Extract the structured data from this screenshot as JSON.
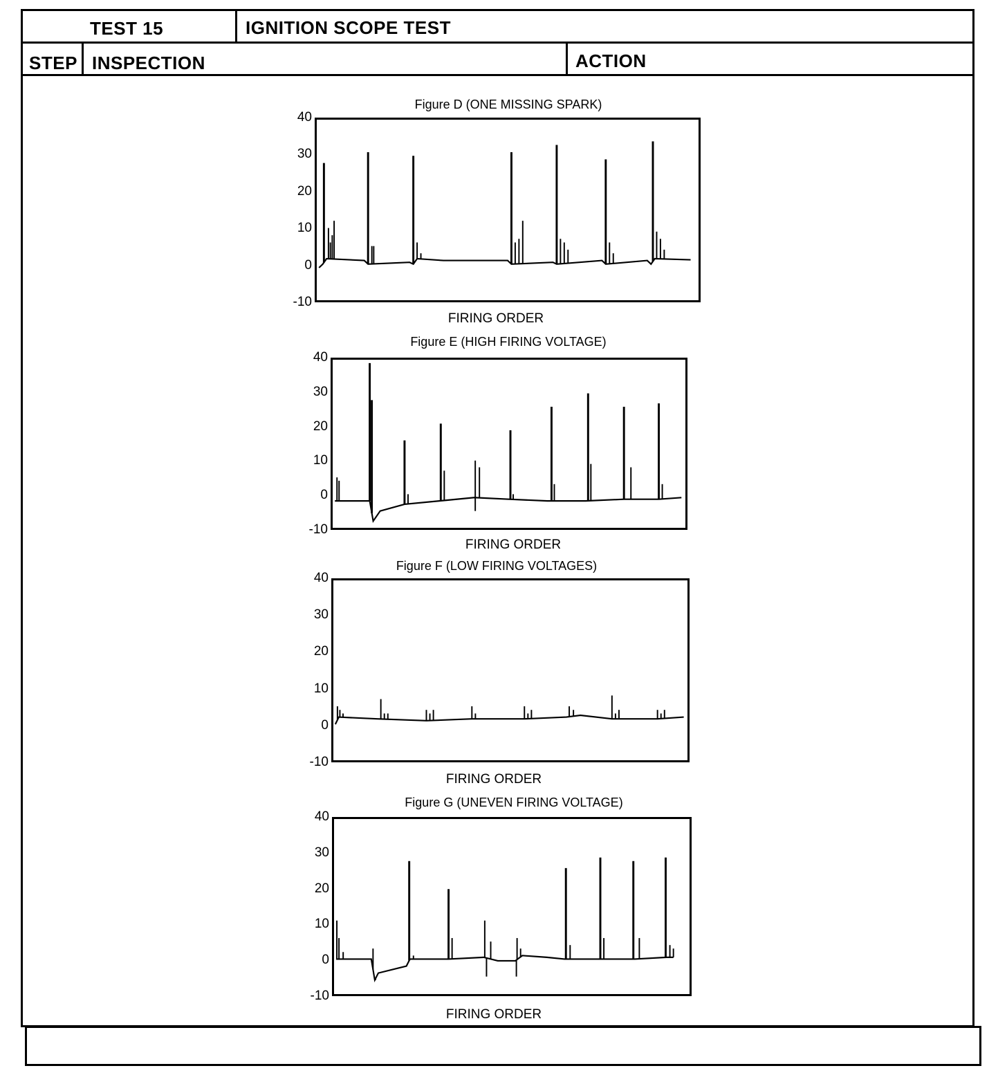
{
  "header": {
    "test_label": "TEST 15",
    "test_title": "IGNITION SCOPE TEST",
    "step_label": "STEP",
    "inspection_label": "INSPECTION",
    "action_label": "ACTION"
  },
  "chart_data": [
    {
      "type": "line",
      "title": "Figure D (ONE MISSING SPARK)",
      "xlabel": "FIRING ORDER",
      "ylabel": "",
      "ylim": [
        -10,
        40
      ],
      "xlim": [
        0,
        100
      ],
      "yticks": [
        "40",
        "30",
        "20",
        "10",
        "0",
        "-10"
      ],
      "baseline": [
        [
          0,
          -1
        ],
        [
          1,
          0
        ],
        [
          2,
          1.5
        ],
        [
          12,
          1
        ],
        [
          13,
          0
        ],
        [
          24,
          0.5
        ],
        [
          25,
          0
        ],
        [
          26,
          1.5
        ],
        [
          33,
          1
        ],
        [
          50,
          1
        ],
        [
          51,
          0
        ],
        [
          62,
          0.5
        ],
        [
          63,
          0
        ],
        [
          75,
          1
        ],
        [
          76,
          0
        ],
        [
          87,
          1
        ],
        [
          88,
          0
        ],
        [
          89,
          1.5
        ],
        [
          98.5,
          1.2
        ]
      ],
      "spikes": [
        [
          1.3,
          28
        ],
        [
          2.5,
          10
        ],
        [
          3,
          6
        ],
        [
          3.5,
          8
        ],
        [
          4,
          12
        ],
        [
          13,
          31
        ],
        [
          14,
          5
        ],
        [
          14.5,
          5
        ],
        [
          25,
          30
        ],
        [
          26,
          6
        ],
        [
          27,
          3
        ],
        [
          51,
          31
        ],
        [
          52,
          6
        ],
        [
          53,
          7
        ],
        [
          54,
          12
        ],
        [
          63,
          33
        ],
        [
          64,
          7
        ],
        [
          65,
          6
        ],
        [
          66,
          4
        ],
        [
          76,
          29
        ],
        [
          77,
          6
        ],
        [
          78,
          3
        ],
        [
          88.5,
          34
        ],
        [
          89.5,
          9
        ],
        [
          90.5,
          7
        ],
        [
          91.5,
          4
        ]
      ]
    },
    {
      "type": "line",
      "title": "Figure E (HIGH FIRING VOLTAGE)",
      "xlabel": "FIRING ORDER",
      "ylabel": "",
      "ylim": [
        -10,
        40
      ],
      "xlim": [
        0,
        100
      ],
      "yticks": [
        "40",
        "30",
        "20",
        "10",
        "0",
        "-10"
      ],
      "baseline": [
        [
          0,
          -2
        ],
        [
          10,
          -2
        ],
        [
          11,
          -8
        ],
        [
          13,
          -5
        ],
        [
          20,
          -3
        ],
        [
          30,
          -2
        ],
        [
          40,
          -1
        ],
        [
          50,
          -1.5
        ],
        [
          61,
          -2
        ],
        [
          62,
          -2
        ],
        [
          72,
          -2
        ],
        [
          83,
          -1.5
        ],
        [
          93,
          -1.5
        ],
        [
          99.5,
          -1
        ]
      ],
      "spikes": [
        [
          0.6,
          5
        ],
        [
          1.2,
          4
        ],
        [
          10,
          39
        ],
        [
          10.6,
          28
        ],
        [
          20,
          16
        ],
        [
          21,
          0
        ],
        [
          30.4,
          21
        ],
        [
          31.4,
          7
        ],
        [
          40.3,
          10
        ],
        [
          41.5,
          8
        ],
        [
          40.3,
          -5
        ],
        [
          50.4,
          19
        ],
        [
          51.2,
          0
        ],
        [
          62.2,
          26
        ],
        [
          63,
          3
        ],
        [
          72.7,
          30
        ],
        [
          73.5,
          9
        ],
        [
          83,
          26
        ],
        [
          85,
          8
        ],
        [
          93,
          27
        ],
        [
          94,
          3
        ]
      ]
    },
    {
      "type": "line",
      "title": "Figure F (LOW FIRING VOLTAGES)",
      "xlabel": "FIRING ORDER",
      "ylabel": "",
      "ylim": [
        -10,
        40
      ],
      "xlim": [
        0,
        100
      ],
      "yticks": [
        "40",
        "30",
        "20",
        "10",
        "0",
        "-10"
      ],
      "baseline": [
        [
          0,
          0
        ],
        [
          1,
          2
        ],
        [
          12,
          1.5
        ],
        [
          26,
          1
        ],
        [
          39,
          1.5
        ],
        [
          54,
          1.5
        ],
        [
          66,
          2
        ],
        [
          70,
          2.5
        ],
        [
          79,
          1.5
        ],
        [
          92,
          1.5
        ],
        [
          99.5,
          2
        ]
      ],
      "spikes": [
        [
          0.6,
          5
        ],
        [
          1.3,
          4
        ],
        [
          2.2,
          3
        ],
        [
          13,
          7
        ],
        [
          14,
          3
        ],
        [
          15,
          3
        ],
        [
          26,
          4
        ],
        [
          27,
          3
        ],
        [
          28,
          4
        ],
        [
          39,
          5
        ],
        [
          40,
          3
        ],
        [
          54,
          5
        ],
        [
          55,
          3
        ],
        [
          56,
          4
        ],
        [
          66.8,
          5
        ],
        [
          68,
          4
        ],
        [
          79,
          8
        ],
        [
          80,
          3
        ],
        [
          81,
          4
        ],
        [
          92,
          4
        ],
        [
          93,
          3
        ],
        [
          94,
          4
        ]
      ]
    },
    {
      "type": "line",
      "title": "Figure G (UNEVEN FIRING VOLTAGE)",
      "xlabel": "FIRING ORDER",
      "ylabel": "",
      "ylim": [
        -10,
        40
      ],
      "xlim": [
        0,
        100
      ],
      "yticks": [
        "40",
        "30",
        "20",
        "10",
        "0",
        "-10"
      ],
      "baseline": [
        [
          0,
          0
        ],
        [
          10,
          0
        ],
        [
          11,
          -6
        ],
        [
          12,
          -4
        ],
        [
          20,
          -2
        ],
        [
          21,
          0
        ],
        [
          32,
          0
        ],
        [
          42,
          0.5
        ],
        [
          46,
          -0.5
        ],
        [
          51,
          -0.5
        ],
        [
          53,
          1
        ],
        [
          60,
          0.5
        ],
        [
          65,
          0
        ],
        [
          75,
          0
        ],
        [
          85,
          0
        ],
        [
          94,
          0.5
        ],
        [
          96,
          0.5
        ]
      ],
      "spikes": [
        [
          0.2,
          11
        ],
        [
          0.8,
          6
        ],
        [
          2,
          2
        ],
        [
          10.5,
          3
        ],
        [
          11.2,
          -6
        ],
        [
          20.8,
          28
        ],
        [
          22,
          1
        ],
        [
          32,
          20
        ],
        [
          33,
          6
        ],
        [
          42.3,
          11
        ],
        [
          42.8,
          -5
        ],
        [
          44,
          5
        ],
        [
          51.5,
          6
        ],
        [
          51.3,
          -5
        ],
        [
          52.5,
          3
        ],
        [
          65.4,
          26
        ],
        [
          66.6,
          4
        ],
        [
          75.2,
          29
        ],
        [
          76.2,
          6
        ],
        [
          84.6,
          28
        ],
        [
          86.3,
          6
        ],
        [
          93.8,
          29
        ],
        [
          95,
          4
        ],
        [
          96,
          3
        ]
      ]
    }
  ]
}
